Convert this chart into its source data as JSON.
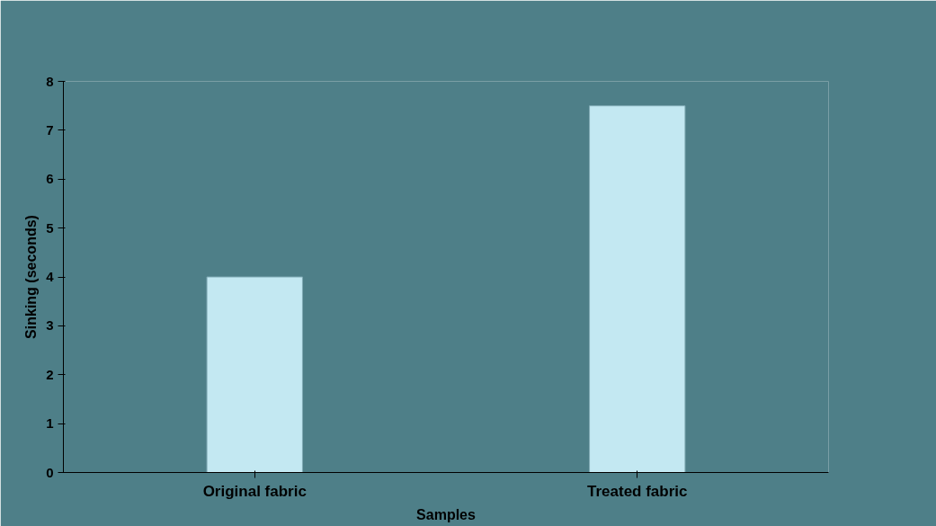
{
  "chart_data": {
    "type": "bar",
    "xlabel": "Samples",
    "ylabel": "Sinking (seconds)",
    "categories": [
      "Original fabric",
      "Treated fabric"
    ],
    "values": [
      4,
      7.5
    ],
    "color": "#c3e8f2",
    "ylim": [
      0,
      8
    ],
    "yticks": [
      0,
      1,
      2,
      3,
      4,
      5,
      6,
      7,
      8
    ],
    "grid": false
  }
}
